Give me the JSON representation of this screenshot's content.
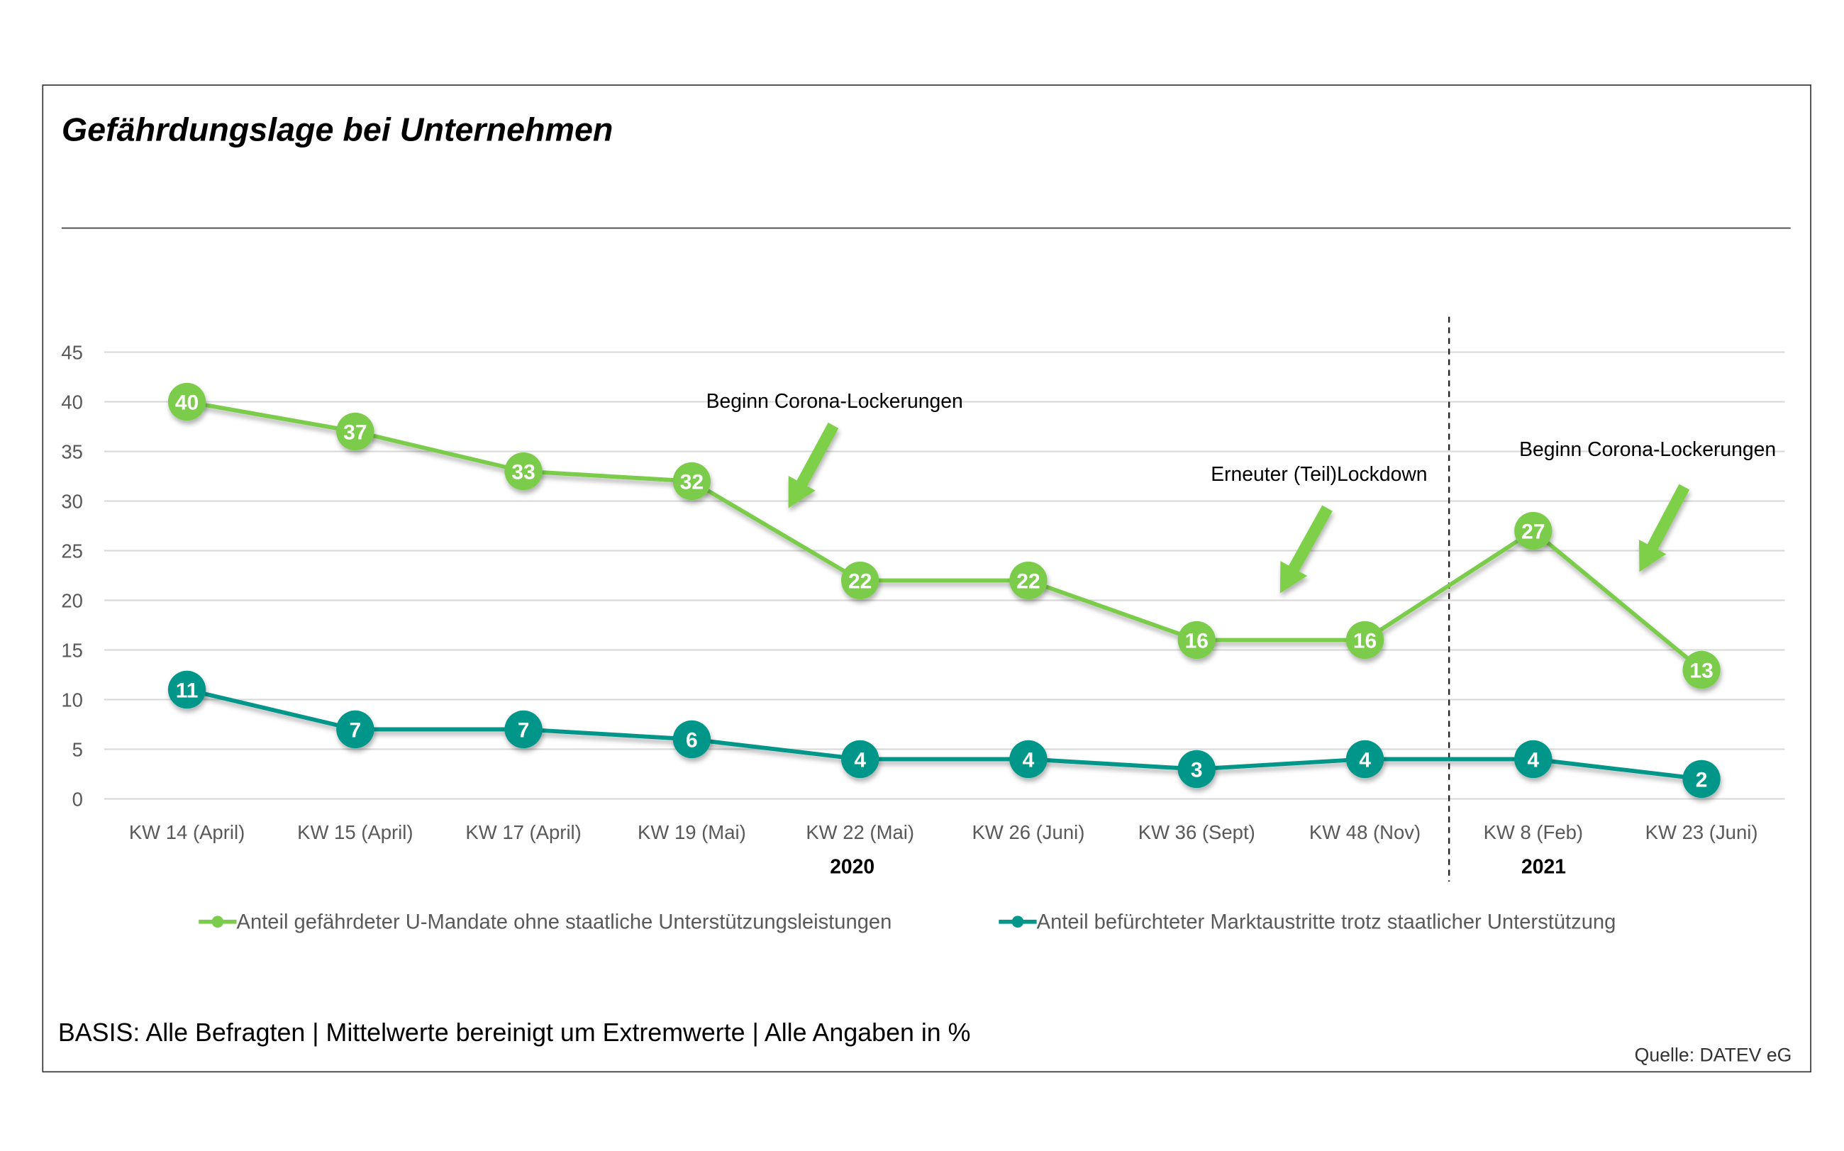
{
  "colors": {
    "green": "#7ccc4c",
    "teal": "#00968a",
    "arrow": "#7fd04a"
  },
  "chart_data": {
    "type": "line",
    "title": "Gefährdungslage bei Unternehmen",
    "xlabel": "",
    "ylabel": "",
    "ylim": [
      0,
      45
    ],
    "yticks": [
      "0",
      "5",
      "10",
      "15",
      "20",
      "25",
      "30",
      "35",
      "40",
      "45"
    ],
    "grid": true,
    "legend_position": "bottom",
    "categories": [
      "KW 14 (April)",
      "KW 15 (April)",
      "KW 17 (April)",
      "KW 19 (Mai)",
      "KW 22 (Mai)",
      "KW 26 (Juni)",
      "KW 36 (Sept)",
      "KW 48 (Nov)",
      "KW 8 (Feb)",
      "KW 23 (Juni)"
    ],
    "year_labels": [
      "2020",
      "2021"
    ],
    "series": [
      {
        "name": "Anteil gefährdeter U-Mandate ohne staatliche Unterstützungsleistungen",
        "color": "#7ccc4c",
        "values": [
          40,
          37,
          33,
          32,
          22,
          22,
          16,
          16,
          27,
          13
        ]
      },
      {
        "name": "Anteil befürchteter Marktaustritte trotz staatlicher Unterstützung",
        "color": "#00968a",
        "values": [
          11,
          7,
          7,
          6,
          4,
          4,
          3,
          4,
          4,
          2
        ]
      }
    ],
    "annotations": [
      "Beginn Corona-Lockerungen",
      "Erneuter (Teil)Lockdown",
      "Beginn Corona-Lockerungen"
    ]
  },
  "footer": {
    "basis": "BASIS: Alle Befragten | Mittelwerte bereinigt um Extremwerte | Alle Angaben in %",
    "source": "Quelle: DATEV eG"
  }
}
